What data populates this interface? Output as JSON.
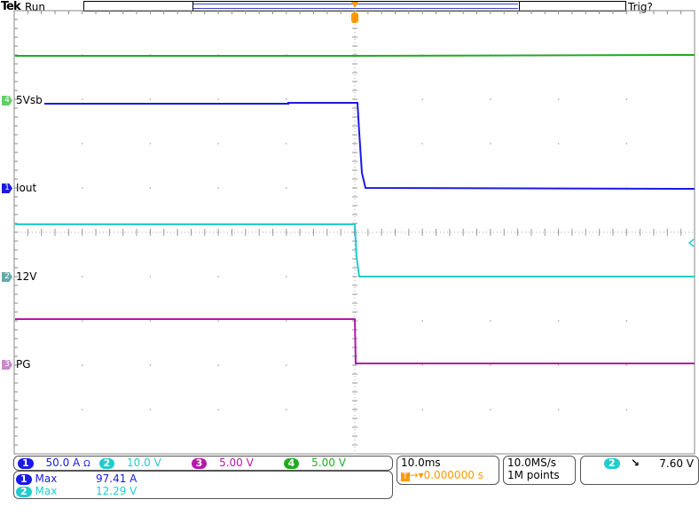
{
  "header": {
    "brand": "Tek",
    "state": "Run",
    "trigger_status": "Trig?"
  },
  "colors": {
    "ch1": "#1a1ae6",
    "ch2": "#22cccc",
    "ch3": "#b21aa8",
    "ch4": "#22aa22",
    "trigger": "#ff9900"
  },
  "channels": [
    {
      "num": "1",
      "label": "Iout",
      "scale": "50.0 A",
      "suffix": "Ω␣"
    },
    {
      "num": "2",
      "label": "12V",
      "scale": "10.0 V"
    },
    {
      "num": "3",
      "label": "PG",
      "scale": "5.00 V"
    },
    {
      "num": "4",
      "label": "5Vsb",
      "scale": "5.00 V"
    }
  ],
  "measurements": [
    {
      "ch": "1",
      "name": "Max",
      "value": "97.41 A"
    },
    {
      "ch": "2",
      "name": "Max",
      "value": "12.29 V"
    }
  ],
  "horizontal": {
    "scale": "10.0ms",
    "position": "0.000000 s"
  },
  "acquisition": {
    "rate": "10.0MS/s",
    "length": "1M points"
  },
  "trigger": {
    "source": "2",
    "slope": "falling",
    "slope_icon": "falling-edge-icon",
    "level": "7.60 V"
  }
}
